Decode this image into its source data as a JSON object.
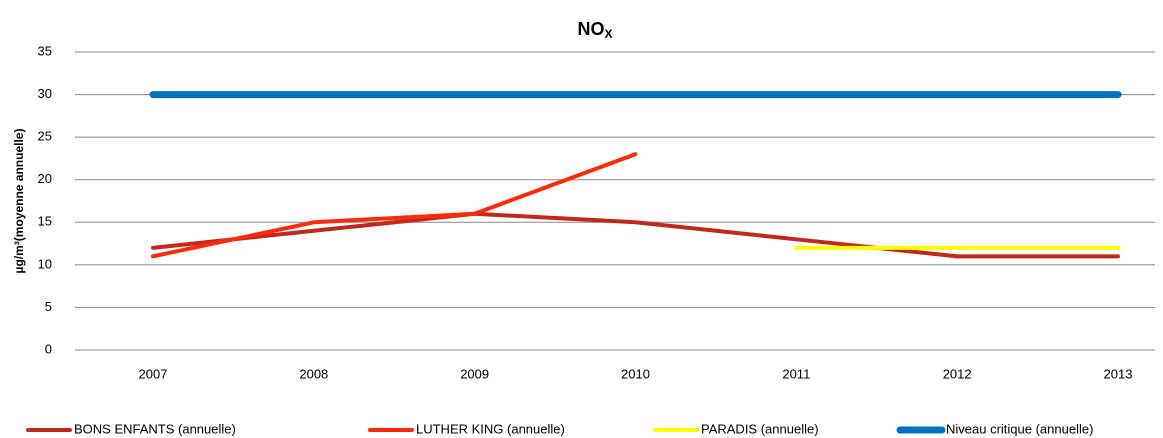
{
  "chart_data": {
    "type": "line",
    "title": "NO",
    "title_subscript": "X",
    "y_label": "µg/m³(moyenne annuelle)",
    "categories": [
      "2007",
      "2008",
      "2009",
      "2010",
      "2011",
      "2012",
      "2013"
    ],
    "series": [
      {
        "name": "BONS ENFANTS (annuelle)",
        "color": "#c0281c",
        "values": [
          12,
          14,
          16,
          15,
          13,
          11,
          11
        ]
      },
      {
        "name": "LUTHER KING (annuelle)",
        "color": "#ff2a0a",
        "values": [
          11,
          15,
          16,
          23,
          null,
          null,
          null
        ]
      },
      {
        "name": "PARADIS (annuelle)",
        "color": "#ffff00",
        "values": [
          null,
          null,
          null,
          null,
          12,
          12,
          12
        ]
      },
      {
        "name": "Niveau critique (annuelle)",
        "color": "#0070c0",
        "values": [
          30,
          30,
          30,
          30,
          30,
          30,
          30
        ]
      }
    ],
    "ylim": [
      0,
      35
    ],
    "yticks": [
      0,
      5,
      10,
      15,
      20,
      25,
      30,
      35
    ],
    "grid": true,
    "legend": "bottom"
  }
}
